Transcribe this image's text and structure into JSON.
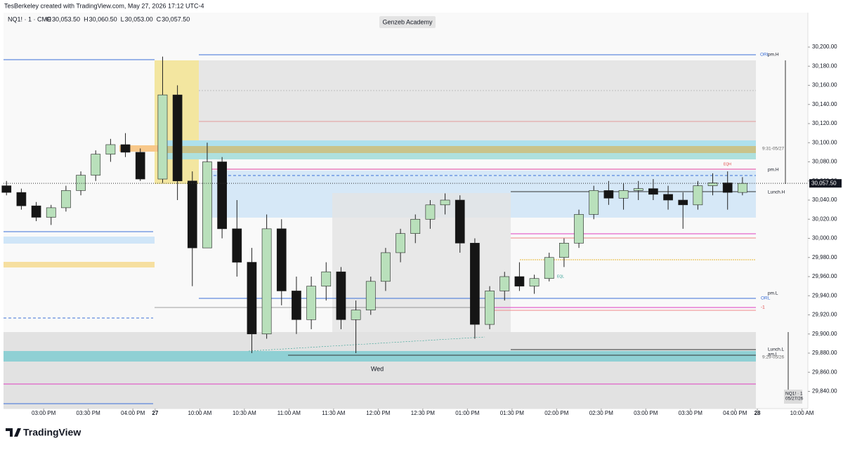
{
  "header": {
    "credit": "TesBerkeley created with TradingView.com, May 27, 2026 17:12 UTC-4",
    "brand": "TradingView"
  },
  "chart_data": {
    "type": "candlestick",
    "symbol": "NQ1! · 1 · CME",
    "ohlc_legend": [
      {
        "letter": "O",
        "text": "30,053.50"
      },
      {
        "letter": "H",
        "text": "30,060.50"
      },
      {
        "letter": "L",
        "text": "30,053.00"
      },
      {
        "letter": "C",
        "text": "30,057.50"
      }
    ],
    "watermark": "Genzeb Academy",
    "up_color": "#b9e0bb",
    "down_color": "#151515",
    "x": [
      -25,
      -15,
      -5,
      5,
      15,
      25,
      35,
      45,
      55,
      65,
      80,
      90,
      100,
      110,
      120,
      130,
      140,
      150,
      160,
      170,
      180,
      190,
      200,
      210,
      220,
      230,
      240,
      250,
      260,
      270,
      280,
      290,
      300,
      310,
      320,
      330,
      340,
      350,
      360,
      370,
      380,
      390,
      400,
      410,
      420,
      430,
      440,
      450,
      460,
      470
    ],
    "open": [
      30055,
      30048,
      30034,
      30022,
      30032,
      30050,
      30066,
      30088,
      30098,
      30090,
      30062,
      30150,
      30060,
      29990,
      30080,
      30010,
      29975,
      29900,
      30010,
      29945,
      29915,
      29950,
      29965,
      29915,
      29925,
      29955,
      29985,
      30005,
      30020,
      30035,
      30040,
      29995,
      29910,
      29945,
      29960,
      29950,
      29958,
      29980,
      29995,
      30025,
      30050,
      30042,
      30050,
      30052,
      30046,
      30040,
      30035,
      30055,
      30058,
      30048
    ],
    "high": [
      30060,
      30052,
      30038,
      30035,
      30055,
      30070,
      30092,
      30104,
      30110,
      30094,
      30190,
      30160,
      30070,
      30100,
      30085,
      30040,
      29990,
      30025,
      30020,
      29960,
      29960,
      29975,
      29970,
      29935,
      29960,
      29990,
      30010,
      30025,
      30040,
      30047,
      30045,
      30000,
      29950,
      29965,
      29975,
      29962,
      29985,
      30000,
      30030,
      30055,
      30060,
      30058,
      30060,
      30062,
      30055,
      30048,
      30060,
      30068,
      30070,
      30064
    ],
    "low": [
      30045,
      30030,
      30018,
      30014,
      30028,
      30045,
      30060,
      30080,
      30085,
      30060,
      30058,
      30040,
      29950,
      29990,
      30000,
      29960,
      29880,
      29895,
      29930,
      29900,
      29905,
      29935,
      29905,
      29880,
      29920,
      29945,
      29975,
      29995,
      30010,
      30025,
      29985,
      29895,
      29905,
      29935,
      29945,
      29942,
      29955,
      29970,
      29990,
      30020,
      30035,
      30030,
      30040,
      30040,
      30030,
      30010,
      30030,
      30045,
      30030,
      30045
    ],
    "close": [
      30048,
      30034,
      30022,
      30032,
      30050,
      30066,
      30088,
      30098,
      30090,
      30062,
      30150,
      30060,
      29990,
      30080,
      30010,
      29975,
      29900,
      30010,
      29945,
      29915,
      29950,
      29965,
      29915,
      29925,
      29955,
      29985,
      30005,
      30020,
      30035,
      30040,
      29995,
      29910,
      29945,
      29960,
      29950,
      29958,
      29980,
      29995,
      30025,
      30050,
      30042,
      30050,
      30052,
      30046,
      30040,
      30035,
      30055,
      30058,
      30048,
      30057.5
    ],
    "xlim": [
      -27,
      514
    ],
    "xticks": [
      {
        "value": 0,
        "label": "03:00 PM"
      },
      {
        "value": 30,
        "label": "03:30 PM"
      },
      {
        "value": 60,
        "label": "04:00 PM"
      },
      {
        "value": 75,
        "label": "27"
      },
      {
        "value": 105,
        "label": "10:00 AM"
      },
      {
        "value": 135,
        "label": "10:30 AM"
      },
      {
        "value": 165,
        "label": "11:00 AM"
      },
      {
        "value": 195,
        "label": "11:30 AM"
      },
      {
        "value": 225,
        "label": "12:00 PM"
      },
      {
        "value": 255,
        "label": "12:30 PM"
      },
      {
        "value": 285,
        "label": "01:00 PM"
      },
      {
        "value": 315,
        "label": "01:30 PM"
      },
      {
        "value": 345,
        "label": "02:00 PM"
      },
      {
        "value": 375,
        "label": "02:30 PM"
      },
      {
        "value": 405,
        "label": "03:00 PM"
      },
      {
        "value": 435,
        "label": "03:30 PM"
      },
      {
        "value": 465,
        "label": "04:00 PM"
      },
      {
        "value": 480,
        "label": "28"
      },
      {
        "value": 510,
        "label": "10:00 AM"
      }
    ],
    "ylim": [
      29822,
      30236
    ],
    "yticks": [
      {
        "value": 29840,
        "label": "29,840.00"
      },
      {
        "value": 29860,
        "label": "29,860.00"
      },
      {
        "value": 29880,
        "label": "29,880.00"
      },
      {
        "value": 29900,
        "label": "29,900.00"
      },
      {
        "value": 29920,
        "label": "29,920.00"
      },
      {
        "value": 29940,
        "label": "29,940.00"
      },
      {
        "value": 29960,
        "label": "29,960.00"
      },
      {
        "value": 29980,
        "label": "29,980.00"
      },
      {
        "value": 30000,
        "label": "30,000.00"
      },
      {
        "value": 30020,
        "label": "30,020.00"
      },
      {
        "value": 30040,
        "label": "30,040.00"
      },
      {
        "value": 30060,
        "label": "30,060.00"
      },
      {
        "value": 30080,
        "label": "30,080.00"
      },
      {
        "value": 30100,
        "label": "30,100.00"
      },
      {
        "value": 30120,
        "label": "30,120.00"
      },
      {
        "value": 30140,
        "label": "30,140.00"
      },
      {
        "value": 30160,
        "label": "30,160.00"
      },
      {
        "value": 30180,
        "label": "30,180.00"
      },
      {
        "value": 30200,
        "label": "30,200.00"
      }
    ],
    "last_price": {
      "value": 30057.5,
      "label": "30,057.50"
    },
    "annotations": [
      "ORL",
      "pm.H",
      "9:31-05/27",
      "pm.H",
      "Lunch.H",
      "pm.L",
      "ORL",
      "-1",
      "Lunch.L",
      "am.L",
      "9:29-05/26",
      "Wed",
      "EQH",
      "EQL",
      "NQ1! · 1",
      "05/27/26"
    ]
  }
}
